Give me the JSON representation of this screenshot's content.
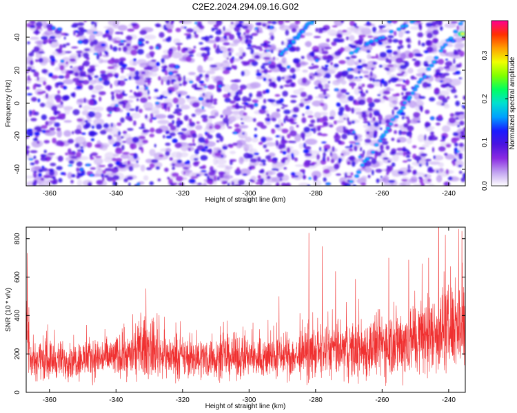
{
  "figure": {
    "title": "C2E2.2024.294.09.16.G02"
  },
  "chart_data": [
    {
      "type": "heatmap",
      "xlabel": "Height of straight line (km)",
      "ylabel": "Frequency (Hz)",
      "xlim": [
        -367,
        -235
      ],
      "ylim": [
        -50,
        50
      ],
      "xticks": [
        -360,
        -340,
        -320,
        -300,
        -280,
        -260,
        -240
      ],
      "yticks": [
        -40,
        -20,
        0,
        20,
        40
      ],
      "colorbar": {
        "label": "Normalized spectral amplitude",
        "range": [
          0.0,
          0.38
        ],
        "ticks": [
          "0.0",
          "0.1",
          "0.2",
          "0.3"
        ],
        "colormap": [
          "#ffffff",
          "#c0a0f0",
          "#8a2be2",
          "#4b14e0",
          "#1a1aff",
          "#00a0ff",
          "#00e0d0",
          "#00ff60",
          "#80ff00",
          "#f0ff00",
          "#ffa000",
          "#ff3000",
          "#ff0090"
        ]
      },
      "features": [
        {
          "name": "",
          "x": [
            -270,
            -236
          ],
          "y": [
            -50,
            50
          ]
        },
        {
          "name": "",
          "x": [
            -270,
            -250
          ],
          "y": [
            30,
            50
          ]
        },
        {
          "name": "",
          "x": [
            -290,
            -281
          ],
          "y": [
            30,
            50
          ]
        }
      ]
    },
    {
      "type": "line",
      "xlabel": "Height of straight line (km)",
      "ylabel": "SNR (10 * v/v)",
      "xlim": [
        -367,
        -235
      ],
      "ylim": [
        0,
        860
      ],
      "xticks": [
        -360,
        -340,
        -320,
        -300,
        -280,
        -260,
        -240
      ],
      "yticks": [
        0,
        200,
        400,
        600,
        800
      ],
      "grid": false,
      "series": [
        {
          "color": "#f03030",
          "x": [
            -366,
            -360,
            -355,
            -350,
            -345,
            -340,
            -335,
            -331,
            -328,
            -325,
            -320,
            -315,
            -310,
            -305,
            -300,
            -295,
            -290,
            -285,
            -280,
            -275,
            -270,
            -265,
            -260,
            -255,
            -250,
            -245,
            -240,
            -236
          ],
          "y": [
            170,
            170,
            165,
            175,
            180,
            185,
            195,
            240,
            215,
            190,
            180,
            180,
            180,
            185,
            180,
            180,
            185,
            190,
            205,
            215,
            220,
            225,
            250,
            260,
            280,
            300,
            330,
            360
          ],
          "spread": [
            90,
            90,
            85,
            90,
            95,
            95,
            105,
            150,
            120,
            100,
            95,
            95,
            95,
            100,
            95,
            95,
            100,
            105,
            115,
            125,
            135,
            140,
            155,
            165,
            175,
            185,
            195,
            200
          ],
          "peaks": [
            [
              -331,
              540
            ],
            [
              -282,
              830
            ],
            [
              -278,
              760
            ],
            [
              -274,
              630
            ],
            [
              -258,
              700
            ],
            [
              -252,
              690
            ],
            [
              -248,
              670
            ],
            [
              -246,
              700
            ],
            [
              -243,
              860
            ],
            [
              -241,
              820
            ],
            [
              -237,
              850
            ],
            [
              -236,
              840
            ],
            [
              -291,
              500
            ],
            [
              -268,
              590
            ]
          ]
        }
      ]
    }
  ]
}
